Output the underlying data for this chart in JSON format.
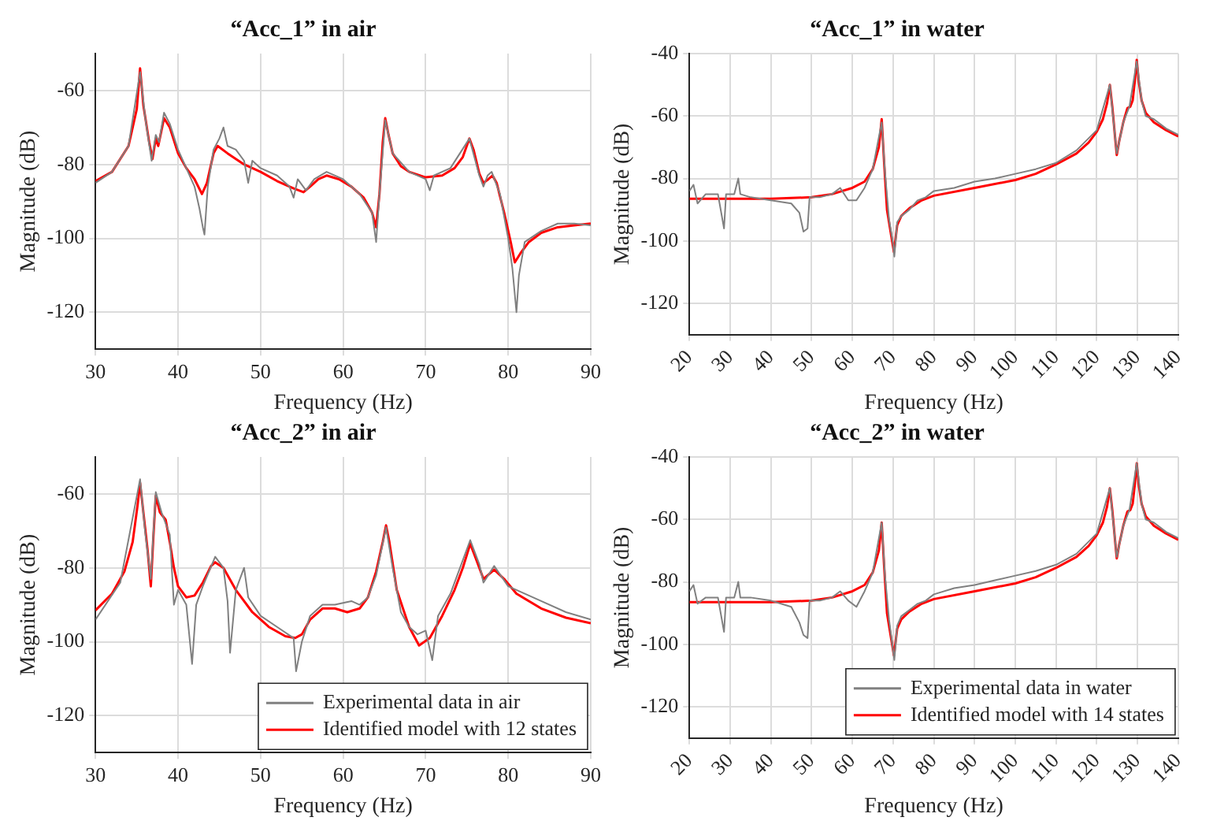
{
  "chart_data": [
    {
      "type": "line",
      "title": "“Acc_1” in air",
      "xlabel": "Frequency (Hz)",
      "ylabel": "Magnitude (dB)",
      "xlim": [
        30,
        90
      ],
      "xticks": [
        30,
        40,
        50,
        60,
        70,
        80,
        90
      ],
      "ylim": [
        -130,
        -50
      ],
      "yticks": [
        -120,
        -100,
        -80,
        -60
      ],
      "grid": true,
      "series": [
        {
          "color": "#808080",
          "x": [
            30,
            32,
            34,
            35.4,
            36,
            36.8,
            37.3,
            37.7,
            38.3,
            39,
            40,
            41,
            42,
            42.6,
            43,
            43.2,
            43.6,
            44.3,
            45,
            45.5,
            46,
            47,
            48,
            48.5,
            49,
            50,
            52,
            53.5,
            54,
            54.5,
            55.5,
            56.5,
            58,
            60,
            62,
            63.5,
            64,
            64.4,
            65.1,
            66,
            68,
            70,
            70.5,
            71,
            73,
            75.3,
            76.5,
            77,
            77.5,
            78,
            79,
            80,
            80.5,
            81,
            81.3,
            82,
            84,
            86,
            88,
            90
          ],
          "values": [
            -85,
            -82,
            -75,
            -55,
            -67,
            -79,
            -72,
            -74,
            -66,
            -69,
            -76,
            -81,
            -86,
            -92,
            -97,
            -99,
            -86,
            -76,
            -73,
            -70,
            -75,
            -76,
            -79,
            -85,
            -79,
            -81,
            -83,
            -86,
            -89,
            -84,
            -87,
            -84,
            -82,
            -84,
            -88,
            -93,
            -101,
            -88,
            -68,
            -77,
            -82,
            -84,
            -87,
            -83,
            -81,
            -73,
            -83,
            -86,
            -83,
            -82,
            -88,
            -100,
            -108,
            -120,
            -110,
            -101,
            -98,
            -96,
            -96,
            -96.5
          ]
        },
        {
          "color": "#ff0000",
          "x": [
            30,
            32,
            34,
            35,
            35.4,
            35.8,
            36.5,
            36.9,
            37.3,
            37.6,
            38.3,
            39,
            40,
            41,
            42,
            42.9,
            43.5,
            44.3,
            44.8,
            46,
            48,
            50,
            52,
            54,
            55.2,
            56,
            57,
            58,
            59.5,
            61,
            62.5,
            63.5,
            64,
            64.4,
            64.8,
            65.1,
            65.5,
            66,
            67,
            68,
            70,
            72,
            73.5,
            74.5,
            75.3,
            75.8,
            76.5,
            77,
            77.6,
            78.1,
            78.6,
            79.5,
            80.3,
            80.8,
            81.5,
            82.5,
            84,
            86,
            88,
            90
          ],
          "values": [
            -84.5,
            -82,
            -75,
            -65,
            -54,
            -64,
            -74,
            -78.5,
            -73,
            -75,
            -67.5,
            -70,
            -77,
            -81,
            -84,
            -88,
            -85,
            -77,
            -75,
            -77,
            -80,
            -82,
            -84.5,
            -86.5,
            -87.5,
            -86,
            -84,
            -83,
            -84,
            -86,
            -89,
            -93,
            -97,
            -88,
            -74,
            -67.5,
            -72,
            -77,
            -80.5,
            -82,
            -83.5,
            -83,
            -81,
            -78,
            -73,
            -76,
            -82.5,
            -85,
            -84,
            -83,
            -85,
            -93,
            -101,
            -106.5,
            -104,
            -101,
            -98.5,
            -97,
            -96.5,
            -96
          ]
        }
      ]
    },
    {
      "type": "line",
      "title": "“Acc_1” in water",
      "xlabel": "Frequency (Hz)",
      "ylabel": "Magnitude (dB)",
      "xlim": [
        20,
        140
      ],
      "xticks": [
        20,
        30,
        40,
        50,
        60,
        70,
        80,
        90,
        100,
        110,
        120,
        130,
        140
      ],
      "ylim": [
        -130,
        -40
      ],
      "yticks": [
        -120,
        -100,
        -80,
        -60,
        -40
      ],
      "grid": true,
      "series": [
        {
          "color": "#808080",
          "x": [
            20,
            21,
            22,
            24,
            27,
            28.5,
            29,
            31,
            32,
            32.5,
            35,
            40,
            45,
            47,
            48,
            49,
            49.5,
            52,
            55,
            57,
            59,
            61,
            63,
            65,
            67.2,
            68,
            69,
            70,
            70.3,
            71,
            72,
            74,
            76,
            78,
            80,
            85,
            90,
            95,
            100,
            105,
            110,
            115,
            120,
            123.2,
            124.9,
            126.5,
            128,
            129.8,
            131,
            132,
            134,
            137,
            140
          ],
          "values": [
            -84,
            -82,
            -88,
            -85,
            -85,
            -96,
            -85,
            -85,
            -80,
            -85,
            -86,
            -87,
            -88,
            -91,
            -97,
            -96,
            -86,
            -86,
            -85,
            -83,
            -87,
            -87,
            -83,
            -77,
            -62,
            -78,
            -93,
            -101,
            -105,
            -94,
            -92,
            -90,
            -87,
            -86,
            -84,
            -83,
            -81,
            -80,
            -78.5,
            -77,
            -75,
            -71,
            -64.5,
            -50,
            -72,
            -62,
            -57,
            -42.5,
            -55,
            -60,
            -61,
            -64,
            -66
          ]
        },
        {
          "color": "#ff0000",
          "x": [
            20,
            30,
            40,
            50,
            55,
            60,
            63,
            65,
            66.5,
            67.2,
            67.8,
            68.5,
            69.5,
            70.2,
            71,
            72,
            74,
            77,
            80,
            90,
            100,
            105,
            110,
            115,
            118,
            120,
            121.5,
            122.5,
            123.2,
            123.8,
            124.5,
            124.9,
            125.5,
            126.5,
            127.5,
            128.2,
            128.8,
            129.4,
            129.8,
            130.3,
            131,
            132,
            134,
            137,
            140
          ],
          "values": [
            -86.5,
            -86.5,
            -86.5,
            -86,
            -85,
            -83,
            -81,
            -77,
            -70,
            -61,
            -75,
            -90,
            -98,
            -103.5,
            -95,
            -92,
            -89.5,
            -87,
            -85.5,
            -83,
            -80.5,
            -78.5,
            -75.5,
            -72,
            -68.5,
            -65,
            -61,
            -56,
            -50,
            -57,
            -67,
            -72.5,
            -68,
            -62,
            -57.5,
            -57,
            -55,
            -48,
            -42,
            -49,
            -55,
            -59,
            -62,
            -64.5,
            -66.5
          ]
        }
      ]
    },
    {
      "type": "line",
      "title": "“Acc_2” in air",
      "xlabel": "Frequency (Hz)",
      "ylabel": "Magnitude (dB)",
      "xlim": [
        30,
        90
      ],
      "xticks": [
        30,
        40,
        50,
        60,
        70,
        80,
        90
      ],
      "ylim": [
        -130,
        -50
      ],
      "yticks": [
        -120,
        -100,
        -80,
        -60
      ],
      "grid": true,
      "legend": "bottom right",
      "series": [
        {
          "name": "Experimental data in air",
          "color": "#808080",
          "x": [
            30,
            33,
            35.4,
            36,
            36.7,
            37.3,
            38,
            39,
            39.5,
            40,
            41,
            41.7,
            42.2,
            43,
            44.5,
            45.5,
            46,
            46.3,
            47,
            48,
            48.5,
            50,
            52,
            54,
            54.3,
            55,
            56,
            57.5,
            59,
            61,
            62,
            63,
            64,
            65.2,
            66,
            67,
            68,
            69,
            70,
            70.8,
            71.5,
            73,
            75.4,
            76.5,
            77,
            78.3,
            80,
            84,
            87,
            90
          ],
          "values": [
            -94,
            -84,
            -56,
            -70,
            -83,
            -59.5,
            -65,
            -71,
            -90,
            -86,
            -90,
            -106,
            -90,
            -85,
            -77,
            -80,
            -89,
            -103,
            -86,
            -80,
            -88,
            -93,
            -96,
            -99,
            -108,
            -100,
            -93,
            -90,
            -90,
            -89,
            -90,
            -88,
            -82,
            -69,
            -80,
            -92,
            -96,
            -98,
            -97,
            -105,
            -93,
            -87,
            -72.5,
            -79,
            -84,
            -79.5,
            -85,
            -89,
            -92,
            -94
          ]
        },
        {
          "name": "Identified model with 12 states",
          "color": "#ff0000",
          "x": [
            30,
            32,
            33.5,
            34.5,
            35.1,
            35.4,
            35.8,
            36.3,
            36.7,
            37,
            37.3,
            37.8,
            38.5,
            39,
            39.5,
            40,
            41,
            42,
            43,
            44,
            44.5,
            45.5,
            47,
            49,
            51,
            53,
            54.2,
            55,
            56,
            57.5,
            59,
            60.5,
            62,
            63,
            64,
            64.8,
            65.2,
            65.6,
            66.5,
            68,
            69.2,
            70.5,
            72,
            73.5,
            74.5,
            75.4,
            76,
            77,
            78.3,
            79.5,
            81,
            84,
            87,
            90
          ],
          "values": [
            -91.5,
            -87,
            -81,
            -73,
            -63,
            -57,
            -65,
            -75,
            -85,
            -72,
            -60.5,
            -65,
            -67,
            -73,
            -80,
            -85,
            -88,
            -87.5,
            -84,
            -79.5,
            -78.5,
            -80,
            -86,
            -92,
            -96,
            -98.5,
            -99,
            -98,
            -94,
            -91,
            -91,
            -92,
            -91,
            -88,
            -81,
            -73,
            -68.5,
            -73,
            -86,
            -96,
            -101,
            -99,
            -93,
            -86,
            -80,
            -73.5,
            -77,
            -83,
            -80.5,
            -83,
            -87,
            -91,
            -93.5,
            -95
          ]
        }
      ]
    },
    {
      "type": "line",
      "title": "“Acc_2” in water",
      "xlabel": "Frequency (Hz)",
      "ylabel": "Magnitude (dB)",
      "xlim": [
        20,
        140
      ],
      "xticks": [
        20,
        30,
        40,
        50,
        60,
        70,
        80,
        90,
        100,
        110,
        120,
        130,
        140
      ],
      "ylim": [
        -130,
        -40
      ],
      "yticks": [
        -120,
        -100,
        -80,
        -60,
        -40
      ],
      "grid": true,
      "legend": "bottom right",
      "series": [
        {
          "name": "Experimental data in water",
          "color": "#808080",
          "x": [
            20,
            21,
            22,
            24,
            27,
            28.5,
            29,
            31,
            32,
            32.5,
            35,
            40,
            45,
            47,
            48,
            49,
            49.5,
            52,
            55,
            57,
            59,
            61,
            63,
            65,
            67.2,
            68,
            69,
            70,
            70.3,
            71,
            72,
            74,
            76,
            78,
            80,
            85,
            90,
            95,
            100,
            105,
            110,
            115,
            120,
            123.2,
            124.9,
            126.5,
            128,
            129.8,
            131,
            132,
            134,
            137,
            140
          ],
          "values": [
            -83,
            -81,
            -87,
            -85,
            -85,
            -96,
            -85,
            -85,
            -80,
            -85,
            -85,
            -86,
            -88,
            -93,
            -97,
            -98,
            -86,
            -86,
            -85,
            -83,
            -86,
            -88,
            -83,
            -77,
            -61,
            -78,
            -92,
            -102,
            -105,
            -94,
            -91,
            -89,
            -87,
            -86,
            -84,
            -82,
            -81,
            -79.5,
            -78,
            -76.5,
            -74.5,
            -71,
            -64.5,
            -50,
            -72,
            -62,
            -57,
            -42,
            -55,
            -60,
            -61,
            -64,
            -66
          ]
        },
        {
          "name": "Identified model with 14 states",
          "color": "#ff0000",
          "x": [
            20,
            30,
            40,
            50,
            55,
            60,
            63,
            65,
            66.5,
            67.2,
            67.8,
            68.5,
            69.5,
            70.2,
            71,
            72,
            74,
            77,
            80,
            90,
            100,
            105,
            110,
            115,
            118,
            120,
            121.5,
            122.5,
            123.2,
            123.8,
            124.5,
            124.9,
            125.5,
            126.5,
            127.5,
            128.2,
            128.8,
            129.4,
            129.8,
            130.3,
            131,
            132,
            134,
            137,
            140
          ],
          "values": [
            -86.5,
            -86.5,
            -86.5,
            -86,
            -85,
            -83,
            -81,
            -77,
            -70,
            -61,
            -75,
            -90,
            -98,
            -103.5,
            -95,
            -92,
            -89.5,
            -87,
            -85.5,
            -83,
            -80.5,
            -78.5,
            -75.5,
            -72,
            -68.5,
            -65,
            -61,
            -56,
            -50,
            -57,
            -67,
            -72.5,
            -68,
            -62,
            -57.5,
            -57,
            -55,
            -48,
            -42,
            -49,
            -55,
            -59,
            -62,
            -64.5,
            -66.5
          ]
        }
      ]
    }
  ]
}
